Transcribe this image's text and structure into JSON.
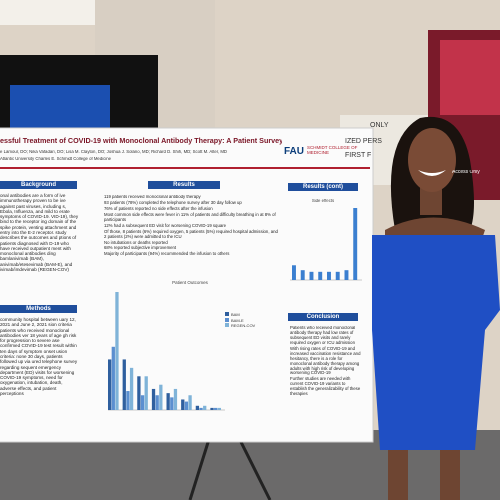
{
  "sign": {
    "lines": [
      "ONLY",
      "IZED PERS",
      "FIRST F",
      "Access Only"
    ]
  },
  "poster": {
    "title": "essful Treatment of COVID-19 with Monoclonal Antibody Therapy: A Patient Survey",
    "authors": "e Lamour, DO; Nika Vafadari, DO; Lisa M. Clayton, DO; Joshua J. Solano, MD; Richard D. Shih, MD; Scott M. Alter, MD",
    "institution": "Atlantic University Charles E. Schmidt College of Medicine",
    "logo": "FAU",
    "logo_sub": "SCHMIDT COLLEGE OF MEDICINE",
    "background": {
      "heading": "Background",
      "text": "onal antibodies are a form of ive immunotherapy proven to be ive against past viruses, including s, Ebola, Influenza, and mild to erate symptoms of COVID-19. VID-19), they bind to the receptor ing domain of the spike protein, venting attachment and entry into the E-2 receptor. study describes the outcomes and ptions of patients diagnosed with D-19 who have received outpatient ment with monoclonal antibodies ding bamlanivimab (BAM), anivimab/etesevimab (BAM-E), and ivimab/imdevimab (REGEN-COV)"
    },
    "methods": {
      "heading": "Methods",
      "text": "community hospital between uary 12, 2021 and June 2, 2021 sion criteria patients who received monoclonal antibodies ver 18 years of age gh risk for progression to severe ase confirmed COVID-19 test result within ten days of symptom onset usion criteria: none 30 days, patients followed up via ured telephone survey regarding sequent emergency department (ED) visits for worsening COVID-19 symptoms, need for oxygenation, intubation, death, adverse effects, and patient perceptions"
    },
    "results": {
      "heading": "Results",
      "bullets": [
        "119 patients received monoclonal antibody therapy",
        "93 patients (78%) completed the telephone survey after 30 day follow up",
        "76% of patients reported no side effects after the infusion",
        "Most common side effects were fever in 11% of patients and difficulty breathing in at 8% of participants",
        "12% had a subsequent ED visit for worsening COVID-19 square",
        "Of those, 8 patients (6%) required oxygen, 5 patients (5%) required hospital admission, and 2 patients (2%) were admitted to the ICU",
        "No intubations or deaths reported",
        "68% reported subjective improvement",
        "Majority of participants (94%) recommended the infusion to others"
      ]
    },
    "outcomes_chart": {
      "title": "Patient Outcomes",
      "series": [
        {
          "name": "BAM",
          "color": "#2f5f9e",
          "values": [
            24,
            24,
            16,
            10,
            8,
            5,
            2,
            1
          ]
        },
        {
          "name": "BAM-E",
          "color": "#5b8fd0",
          "values": [
            30,
            9,
            7,
            7,
            6,
            4,
            1,
            1
          ]
        },
        {
          "name": "REGEN-COV",
          "color": "#7fb3d8",
          "values": [
            56,
            20,
            16,
            12,
            10,
            7,
            2,
            1
          ]
        }
      ]
    },
    "results_cont": {
      "heading": "Results (cont)",
      "chart_title": "Side effects",
      "values": [
        9,
        6,
        5,
        5,
        5,
        5,
        6,
        44
      ],
      "color": "#3b7fd0"
    },
    "conclusion": {
      "heading": "Conclusion",
      "bullets": [
        "Patients who received monoclonal antibody therapy had low rates of subsequent ED visits and rarely required oxygen or ICU admission",
        "With rising rates of COVID-19 and increased vaccination resistance and hesitancy, there is a role for monoclonal antibody therapy among adults with high risk of developing worsening COVID-19",
        "Further studies are needed with current COVID-19 variants to establish the generalizability of these therapies"
      ]
    }
  }
}
